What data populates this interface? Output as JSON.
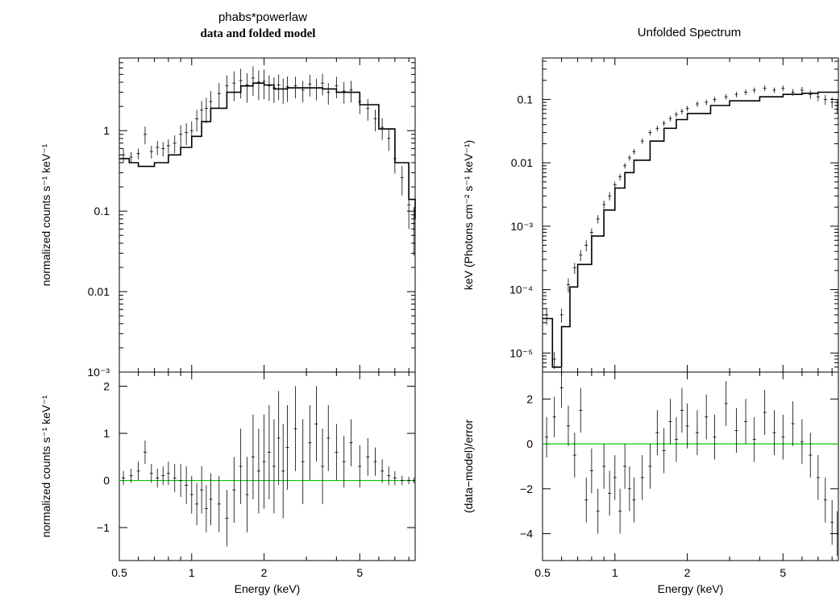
{
  "titles": {
    "left_title": "phabs*powerlaw",
    "left_subtitle": "data and folded model",
    "right_title": "Unfolded Spectrum"
  },
  "colors": {
    "data": "#000000",
    "zero_line": "#00cc00"
  },
  "chart_data": [
    {
      "name": "left-top",
      "type": "scatter",
      "title": "phabs*powerlaw",
      "subtitle": "data and folded model",
      "ylabel": "normalized counts s⁻¹ keV⁻¹",
      "xscale": "log",
      "yscale": "log",
      "xlim": [
        0.5,
        8.5
      ],
      "ylim": [
        0.001,
        8
      ],
      "yticks": [
        {
          "v": 1,
          "label": "1"
        },
        {
          "v": 0.1,
          "label": "0.1"
        },
        {
          "v": 0.01,
          "label": "0.01"
        },
        {
          "v": 0.001,
          "label": "10⁻³"
        }
      ],
      "model": {
        "x": [
          0.5,
          0.55,
          0.6,
          0.65,
          0.7,
          0.8,
          0.9,
          1.0,
          1.1,
          1.2,
          1.4,
          1.6,
          1.8,
          2.0,
          2.2,
          2.5,
          3.0,
          3.5,
          4.0,
          5.0,
          6.0,
          7.0,
          8.0,
          8.5
        ],
        "y": [
          0.45,
          0.4,
          0.36,
          0.36,
          0.4,
          0.5,
          0.62,
          0.85,
          1.3,
          1.9,
          3.0,
          3.6,
          3.9,
          3.7,
          3.3,
          3.4,
          3.4,
          3.3,
          3.0,
          2.1,
          1.05,
          0.4,
          0.14,
          0.08
        ]
      },
      "data": {
        "x": [
          0.52,
          0.56,
          0.6,
          0.64,
          0.68,
          0.72,
          0.76,
          0.8,
          0.85,
          0.9,
          0.95,
          1.0,
          1.05,
          1.1,
          1.15,
          1.2,
          1.3,
          1.4,
          1.5,
          1.6,
          1.7,
          1.8,
          1.9,
          2.0,
          2.1,
          2.2,
          2.3,
          2.4,
          2.5,
          2.7,
          2.9,
          3.1,
          3.3,
          3.5,
          3.7,
          4.0,
          4.3,
          4.6,
          5.0,
          5.4,
          5.8,
          6.2,
          6.6,
          7.0,
          7.5,
          8.0,
          8.4
        ],
        "y": [
          0.5,
          0.47,
          0.52,
          0.9,
          0.55,
          0.62,
          0.6,
          0.65,
          0.7,
          0.9,
          0.95,
          1.0,
          1.4,
          1.8,
          1.9,
          2.3,
          2.9,
          3.6,
          3.9,
          4.2,
          3.7,
          4.5,
          4.0,
          4.1,
          3.6,
          3.4,
          3.7,
          3.3,
          3.5,
          3.6,
          3.2,
          3.8,
          3.4,
          3.9,
          3.0,
          3.6,
          3.1,
          3.2,
          2.3,
          1.9,
          1.4,
          1.1,
          0.8,
          0.45,
          0.26,
          0.12,
          0.07
        ],
        "err": [
          0.2,
          0.15,
          0.15,
          0.25,
          0.18,
          0.2,
          0.2,
          0.2,
          0.25,
          0.3,
          0.3,
          0.3,
          0.3,
          0.3,
          0.35,
          0.35,
          0.35,
          0.35,
          0.4,
          0.4,
          0.4,
          0.4,
          0.4,
          0.4,
          0.35,
          0.35,
          0.35,
          0.35,
          0.35,
          0.3,
          0.3,
          0.3,
          0.3,
          0.3,
          0.3,
          0.3,
          0.3,
          0.3,
          0.3,
          0.3,
          0.3,
          0.3,
          0.3,
          0.35,
          0.4,
          0.5,
          0.6
        ]
      }
    },
    {
      "name": "left-bottom",
      "type": "scatter",
      "xlabel": "Energy (keV)",
      "ylabel": "normalized counts s⁻¹ keV⁻¹",
      "xscale": "log",
      "xlim": [
        0.5,
        8.5
      ],
      "ylim": [
        -1.7,
        2.3
      ],
      "xticks": [
        {
          "v": 0.5,
          "label": "0.5"
        },
        {
          "v": 1,
          "label": "1"
        },
        {
          "v": 2,
          "label": "2"
        },
        {
          "v": 5,
          "label": "5"
        }
      ],
      "yticks": [
        {
          "v": 2,
          "label": "2"
        },
        {
          "v": 1,
          "label": "1"
        },
        {
          "v": 0,
          "label": "0"
        },
        {
          "v": -1,
          "label": "−1"
        }
      ],
      "zero": 0,
      "data": {
        "x": [
          0.52,
          0.56,
          0.6,
          0.64,
          0.68,
          0.72,
          0.76,
          0.8,
          0.85,
          0.9,
          0.95,
          1.0,
          1.05,
          1.1,
          1.15,
          1.2,
          1.3,
          1.4,
          1.5,
          1.6,
          1.7,
          1.8,
          1.9,
          2.0,
          2.1,
          2.2,
          2.3,
          2.4,
          2.5,
          2.7,
          2.9,
          3.1,
          3.3,
          3.5,
          3.7,
          4.0,
          4.3,
          4.6,
          5.0,
          5.4,
          5.8,
          6.2,
          6.6,
          7.0,
          7.5,
          8.0,
          8.4
        ],
        "y": [
          0.05,
          0.1,
          0.2,
          0.6,
          0.15,
          0.05,
          0.1,
          0.15,
          0.05,
          0.0,
          -0.1,
          -0.3,
          -0.5,
          -0.2,
          -0.6,
          -0.4,
          -0.5,
          -0.8,
          -0.2,
          0.3,
          -0.3,
          0.5,
          0.2,
          0.4,
          0.6,
          0.3,
          0.9,
          0.2,
          0.7,
          1.1,
          0.4,
          0.8,
          1.2,
          0.3,
          0.9,
          0.6,
          0.4,
          0.8,
          0.3,
          0.5,
          0.4,
          0.2,
          0.1,
          0.05,
          0.0,
          0.0,
          0.0
        ],
        "err": [
          0.15,
          0.15,
          0.2,
          0.25,
          0.2,
          0.2,
          0.2,
          0.25,
          0.3,
          0.35,
          0.4,
          0.4,
          0.45,
          0.5,
          0.5,
          0.55,
          0.6,
          0.6,
          0.7,
          0.8,
          0.8,
          0.9,
          0.9,
          1.0,
          1.0,
          1.0,
          1.0,
          1.0,
          0.9,
          0.9,
          0.9,
          0.8,
          0.8,
          0.8,
          0.7,
          0.6,
          0.55,
          0.5,
          0.45,
          0.4,
          0.3,
          0.25,
          0.2,
          0.15,
          0.1,
          0.08,
          0.06
        ]
      }
    },
    {
      "name": "right-top",
      "type": "scatter",
      "title": "Unfolded Spectrum",
      "ylabel": "keV (Photons cm⁻² s⁻¹ keV⁻¹)",
      "xscale": "log",
      "yscale": "log",
      "xlim": [
        0.5,
        8.5
      ],
      "ylim": [
        5e-06,
        0.45
      ],
      "yticks": [
        {
          "v": 0.1,
          "label": "0.1"
        },
        {
          "v": 0.01,
          "label": "0.01"
        },
        {
          "v": 0.001,
          "label": "10⁻³"
        },
        {
          "v": 0.0001,
          "label": "10⁻⁴"
        },
        {
          "v": 1e-05,
          "label": "10⁻⁵"
        }
      ],
      "model": {
        "x": [
          0.5,
          0.55,
          0.6,
          0.65,
          0.7,
          0.8,
          0.9,
          1.0,
          1.1,
          1.2,
          1.4,
          1.6,
          1.8,
          2.0,
          2.5,
          3.0,
          4.0,
          5.0,
          6.0,
          7.0,
          8.5
        ],
        "y": [
          3.5e-05,
          6e-06,
          2.6e-05,
          0.00011,
          0.00025,
          0.0007,
          0.0018,
          0.004,
          0.007,
          0.011,
          0.022,
          0.035,
          0.048,
          0.06,
          0.08,
          0.095,
          0.11,
          0.12,
          0.125,
          0.13,
          0.135
        ]
      },
      "data": {
        "x": [
          0.52,
          0.56,
          0.6,
          0.64,
          0.68,
          0.72,
          0.76,
          0.8,
          0.85,
          0.9,
          0.95,
          1.0,
          1.05,
          1.1,
          1.15,
          1.2,
          1.3,
          1.4,
          1.5,
          1.6,
          1.7,
          1.8,
          1.9,
          2.0,
          2.2,
          2.4,
          2.6,
          2.9,
          3.2,
          3.5,
          3.8,
          4.2,
          4.6,
          5.0,
          5.5,
          6.0,
          6.5,
          7.0,
          7.5,
          8.0,
          8.4
        ],
        "y": [
          4e-05,
          8e-06,
          4e-05,
          0.00012,
          0.00022,
          0.00035,
          0.0005,
          0.0008,
          0.0013,
          0.0022,
          0.003,
          0.0045,
          0.006,
          0.009,
          0.012,
          0.015,
          0.022,
          0.03,
          0.035,
          0.042,
          0.05,
          0.058,
          0.065,
          0.072,
          0.085,
          0.09,
          0.1,
          0.11,
          0.12,
          0.13,
          0.14,
          0.15,
          0.14,
          0.15,
          0.13,
          0.14,
          0.12,
          0.11,
          0.1,
          0.09,
          0.08
        ],
        "err": [
          0.3,
          0.3,
          0.25,
          0.25,
          0.2,
          0.2,
          0.2,
          0.15,
          0.15,
          0.15,
          0.15,
          0.12,
          0.12,
          0.1,
          0.1,
          0.1,
          0.1,
          0.1,
          0.1,
          0.1,
          0.1,
          0.1,
          0.1,
          0.1,
          0.1,
          0.1,
          0.1,
          0.1,
          0.1,
          0.1,
          0.1,
          0.1,
          0.1,
          0.1,
          0.12,
          0.12,
          0.15,
          0.15,
          0.18,
          0.2,
          0.25
        ]
      }
    },
    {
      "name": "right-bottom",
      "type": "scatter",
      "xlabel": "Energy (keV)",
      "ylabel": "(data−model)/error",
      "xscale": "log",
      "xlim": [
        0.5,
        8.5
      ],
      "ylim": [
        -5.2,
        3.2
      ],
      "xticks": [
        {
          "v": 0.5,
          "label": "0.5"
        },
        {
          "v": 1,
          "label": "1"
        },
        {
          "v": 2,
          "label": "2"
        },
        {
          "v": 5,
          "label": "5"
        }
      ],
      "yticks": [
        {
          "v": 2,
          "label": "2"
        },
        {
          "v": 0,
          "label": "0"
        },
        {
          "v": -2,
          "label": "−2"
        },
        {
          "v": -4,
          "label": "−4"
        }
      ],
      "zero": 0,
      "data": {
        "x": [
          0.52,
          0.56,
          0.6,
          0.64,
          0.68,
          0.72,
          0.76,
          0.8,
          0.85,
          0.9,
          0.95,
          1.0,
          1.05,
          1.1,
          1.15,
          1.2,
          1.3,
          1.4,
          1.5,
          1.6,
          1.7,
          1.8,
          1.9,
          2.0,
          2.2,
          2.4,
          2.6,
          2.9,
          3.2,
          3.5,
          3.8,
          4.2,
          4.6,
          5.0,
          5.5,
          6.0,
          6.5,
          7.0,
          7.5,
          8.0,
          8.4
        ],
        "y": [
          0.3,
          1.2,
          2.5,
          0.8,
          -0.5,
          1.5,
          -2.5,
          -1.2,
          -3.0,
          -1.0,
          -2.2,
          -1.5,
          -3.0,
          -1.0,
          -2.0,
          -2.5,
          -1.5,
          -1.0,
          0.5,
          -0.3,
          1.0,
          0.2,
          1.5,
          0.8,
          0.5,
          1.2,
          0.3,
          1.8,
          0.6,
          1.0,
          0.2,
          1.4,
          0.5,
          0.3,
          0.9,
          0.1,
          -0.5,
          -1.5,
          -2.5,
          -3.5,
          -4.0
        ],
        "err": [
          0.9,
          0.9,
          0.9,
          0.9,
          1.0,
          1.0,
          1.0,
          1.0,
          1.0,
          1.0,
          1.0,
          1.0,
          1.0,
          1.0,
          1.0,
          1.0,
          1.0,
          1.0,
          1.0,
          1.0,
          1.0,
          1.0,
          1.0,
          1.0,
          1.0,
          1.0,
          1.0,
          1.0,
          1.0,
          1.0,
          1.0,
          1.0,
          1.0,
          1.0,
          1.0,
          1.0,
          1.0,
          1.0,
          1.0,
          1.0,
          1.0
        ]
      }
    }
  ]
}
